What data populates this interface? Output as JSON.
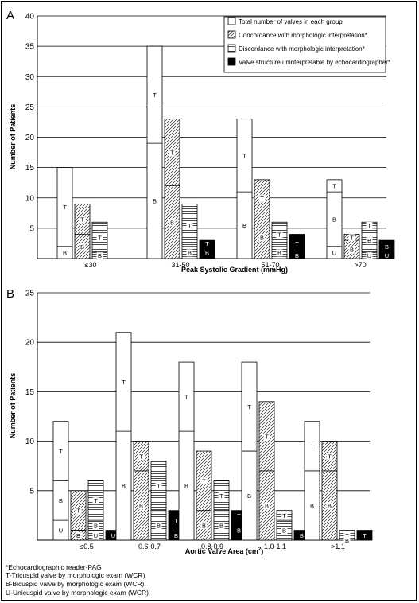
{
  "chart_data": [
    {
      "type": "bar",
      "panel_label": "A",
      "categories": [
        "≤30",
        "31-50",
        "51-70",
        ">70"
      ],
      "xlabel": "Peak Systolic Gradient (mmHg)",
      "xlabel_main": "Peak Systolic Gradient (mmHg)",
      "xlabel_sup": "",
      "xlabel_tail": "",
      "ylabel": "Number of Patients",
      "ylim": [
        0,
        40
      ],
      "yticks": [
        5,
        10,
        15,
        20,
        25,
        30,
        35,
        40
      ],
      "grid": true,
      "legend_placement": "top-right",
      "series": [
        {
          "name": "Total number of valves in each group",
          "values": [
            15,
            35,
            23,
            13
          ],
          "segments": [
            [
              [
                "B",
                2
              ],
              [
                "T",
                15
              ]
            ],
            [
              [
                "B",
                19
              ],
              [
                "T",
                35
              ]
            ],
            [
              [
                "B",
                11
              ],
              [
                "T",
                23
              ]
            ],
            [
              [
                "U",
                2
              ],
              [
                "B",
                11
              ],
              [
                "T",
                13
              ]
            ]
          ]
        },
        {
          "name": "Concordance with morphologic interpretation*",
          "values": [
            9,
            23,
            13,
            4
          ],
          "segments": [
            [
              [
                "B",
                4
              ],
              [
                "T",
                9
              ]
            ],
            [
              [
                "B",
                12
              ],
              [
                "T",
                23
              ]
            ],
            [
              [
                "B",
                7
              ],
              [
                "T",
                13
              ]
            ],
            [
              [
                "B",
                3
              ],
              [
                "T",
                4
              ]
            ]
          ]
        },
        {
          "name": "Discordance with morphologic interpretation*",
          "values": [
            6,
            9,
            6,
            6
          ],
          "segments": [
            [
              [
                "B",
                1
              ],
              [
                "T",
                6
              ]
            ],
            [
              [
                "B",
                2
              ],
              [
                "T",
                9
              ]
            ],
            [
              [
                "B",
                2
              ],
              [
                "T",
                6
              ]
            ],
            [
              [
                "U",
                1
              ],
              [
                "B",
                5
              ],
              [
                "T",
                6
              ]
            ]
          ]
        },
        {
          "name": "Valve structure uninterpretable by echocardiographer*",
          "values": [
            0,
            3,
            4,
            3
          ],
          "segments": [
            [],
            [
              [
                "B",
                2
              ],
              [
                "T",
                3
              ]
            ],
            [
              [
                "B",
                1
              ],
              [
                "T",
                4
              ]
            ],
            [
              [
                "U",
                1
              ],
              [
                "B",
                3
              ]
            ]
          ]
        }
      ]
    },
    {
      "type": "bar",
      "panel_label": "B",
      "categories": [
        "≤0.5",
        "0.6-0.7",
        "0.8-0.9",
        "1.0-1.1",
        ">1.1"
      ],
      "xlabel": "Aortic Valve Area (cm2)",
      "xlabel_main": "Aortic Valve Area (cm",
      "xlabel_sup": "2",
      "xlabel_tail": ")",
      "ylabel": "Number of Patients",
      "ylim": [
        0,
        25
      ],
      "yticks": [
        5,
        10,
        15,
        20,
        25
      ],
      "grid": true,
      "series": [
        {
          "name": "Total number of valves in each group",
          "values": [
            12,
            21,
            18,
            18,
            12
          ],
          "segments": [
            [
              [
                "U",
                2
              ],
              [
                "B",
                6
              ],
              [
                "T",
                12
              ]
            ],
            [
              [
                "B",
                11
              ],
              [
                "T",
                21
              ]
            ],
            [
              [
                "B",
                11
              ],
              [
                "T",
                18
              ]
            ],
            [
              [
                "B",
                9
              ],
              [
                "T",
                18
              ]
            ],
            [
              [
                "B",
                7
              ],
              [
                "T",
                12
              ]
            ]
          ]
        },
        {
          "name": "Concordance with morphologic interpretation*",
          "values": [
            5,
            10,
            9,
            14,
            10
          ],
          "segments": [
            [
              [
                "B",
                1
              ],
              [
                "T",
                5
              ]
            ],
            [
              [
                "B",
                7
              ],
              [
                "T",
                10
              ]
            ],
            [
              [
                "B",
                3
              ],
              [
                "T",
                9
              ]
            ],
            [
              [
                "B",
                7
              ],
              [
                "T",
                14
              ]
            ],
            [
              [
                "B",
                7
              ],
              [
                "T",
                10
              ]
            ]
          ]
        },
        {
          "name": "Discordance with morphologic interpretation*",
          "values": [
            6,
            8,
            6,
            3,
            1
          ],
          "segments": [
            [
              [
                "U",
                1
              ],
              [
                "B",
                2
              ],
              [
                "T",
                6
              ]
            ],
            [
              [
                "B",
                3
              ],
              [
                "T",
                8
              ]
            ],
            [
              [
                "B",
                3
              ],
              [
                "T",
                6
              ]
            ],
            [
              [
                "B",
                2
              ],
              [
                "T",
                3
              ]
            ],
            [
              [
                "B",
                0
              ],
              [
                "T",
                1
              ]
            ]
          ]
        },
        {
          "name": "Valve structure uninterpretable by echocardiographer*",
          "values": [
            1,
            3,
            3,
            1,
            1
          ],
          "segments": [
            [
              [
                "U",
                1
              ]
            ],
            [
              [
                "B",
                1
              ],
              [
                "T",
                3
              ]
            ],
            [
              [
                "B",
                2
              ],
              [
                "T",
                3
              ]
            ],
            [
              [
                "B",
                1
              ]
            ],
            [
              [
                "T",
                1
              ]
            ]
          ]
        }
      ]
    }
  ],
  "footnotes": [
    "*Echocardiographic reader-PAG",
    "T-Tricuspid valve by morphologic exam (WCR)",
    "B-Bicuspid valve by morphologic exam (WCR)",
    "U-Unicuspid valve by morphologic exam (WCR)"
  ],
  "colors": {
    "grid": "#000000",
    "bar_outline": "#000000",
    "solid_fill": "#000000",
    "background": "#ffffff"
  }
}
